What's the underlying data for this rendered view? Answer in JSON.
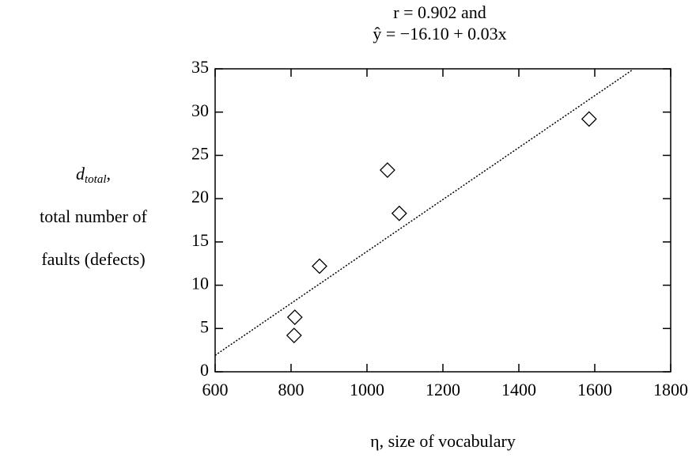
{
  "chart_data": {
    "type": "scatter",
    "title": [
      "r = 0.902 and",
      "ŷ = −16.10 + 0.03x"
    ],
    "x_label": "η, size of vocabulary",
    "y_label": {
      "symbol": "d",
      "subscript": "total",
      "suffix": ",",
      "lines": [
        "total number of",
        "faults (defects)"
      ]
    },
    "x": [
      808,
      810,
      875,
      1054,
      1085,
      1585
    ],
    "values": [
      4.2,
      6.3,
      12.2,
      23.3,
      18.3,
      29.2
    ],
    "fit": {
      "x": [
        600,
        1700
      ],
      "values": [
        1.9,
        34.9
      ]
    },
    "xlim": [
      600,
      1800
    ],
    "xticks": [
      600,
      800,
      1000,
      1200,
      1400,
      1600,
      1800
    ],
    "ylim": [
      0,
      35
    ],
    "yticks": [
      0,
      5,
      10,
      15,
      20,
      25,
      30,
      35
    ],
    "color": "#000000"
  }
}
